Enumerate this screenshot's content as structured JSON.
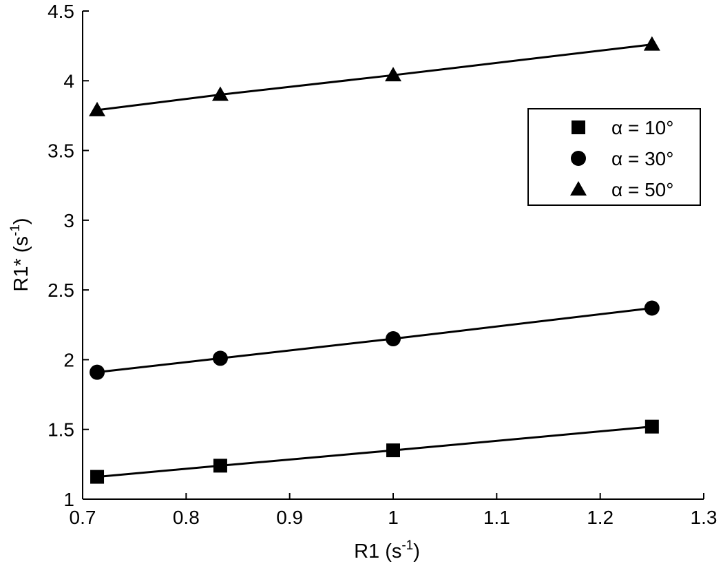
{
  "chart_data": {
    "type": "line",
    "xlabel_base": "R1 (s",
    "xlabel_sup": "-1",
    "xlabel_end": ")",
    "ylabel_base": "R1* (s",
    "ylabel_sup": "-1",
    "ylabel_end": ")",
    "xlim": [
      0.7,
      1.3
    ],
    "ylim": [
      1,
      4.5
    ],
    "xticks": [
      "0.7",
      "0.8",
      "0.9",
      "1",
      "1.1",
      "1.2",
      "1.3"
    ],
    "yticks": [
      "1",
      "1.5",
      "2",
      "2.5",
      "3",
      "3.5",
      "4",
      "4.5"
    ],
    "x": [
      0.714,
      0.833,
      1.0,
      1.25
    ],
    "series": [
      {
        "name": "α = 10°",
        "marker": "square",
        "values": [
          1.16,
          1.24,
          1.35,
          1.52
        ]
      },
      {
        "name": "α = 30°",
        "marker": "circle",
        "values": [
          1.91,
          2.01,
          2.15,
          2.37
        ]
      },
      {
        "name": "α = 50°",
        "marker": "triangle",
        "values": [
          3.79,
          3.9,
          4.04,
          4.26
        ]
      }
    ],
    "legend_position": "top-right",
    "grid": false,
    "color": "#000000"
  }
}
